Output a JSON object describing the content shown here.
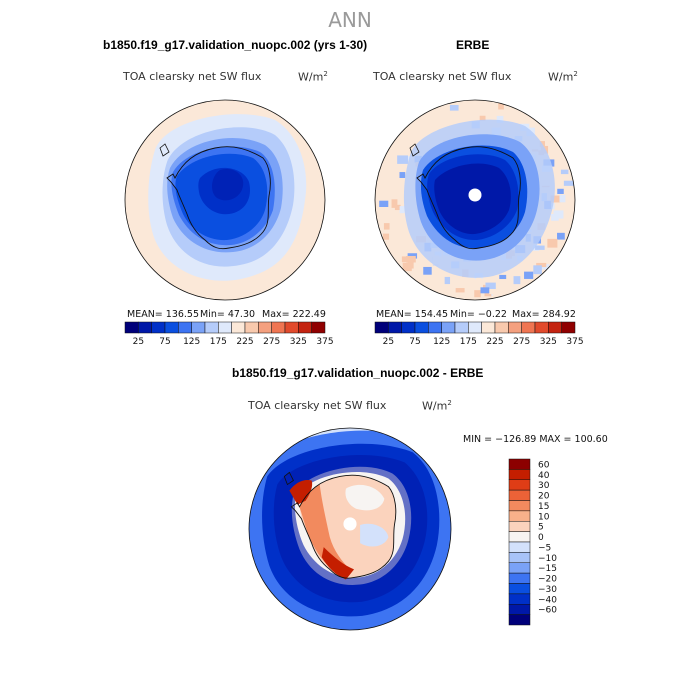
{
  "figure": {
    "title": "ANN",
    "season": "ANN"
  },
  "colors": {
    "scale_main": [
      "#00007a",
      "#0018a8",
      "#0030c8",
      "#0a4fe0",
      "#3d74f2",
      "#7aa2f7",
      "#b5ccfa",
      "#dfe9fb",
      "#fbe8d8",
      "#f8c9ad",
      "#f4a07f",
      "#ef7552",
      "#e14a2c",
      "#c42310",
      "#900000"
    ],
    "scale_diff": [
      "#00007a",
      "#0018a8",
      "#0030c8",
      "#0a4fe0",
      "#3d74f2",
      "#7aa2f7",
      "#a8c3f8",
      "#d3e1fb",
      "#f7f4f2",
      "#fbd3bd",
      "#f8b08a",
      "#f28a5e",
      "#ec6237",
      "#df3d16",
      "#c41e00",
      "#8c0000"
    ]
  },
  "chart_data": [
    {
      "type": "heatmap",
      "projection": "south-polar-stereographic",
      "title": "b1850.f19_g17.validation_nuopc.002 (yrs 1-30)",
      "variable": "TOA clearsky net SW flux",
      "units": "W/m",
      "units_exp": "2",
      "mean_label": "MEAN= 136.55",
      "min_label": "Min=   47.30",
      "max_label": "Max= 222.49",
      "mean": 136.55,
      "min": 47.3,
      "max": 222.49,
      "colorbar_ticks": [
        "25",
        "75",
        "125",
        "175",
        "225",
        "275",
        "325",
        "375"
      ]
    },
    {
      "type": "heatmap",
      "projection": "south-polar-stereographic",
      "title": "ERBE",
      "variable": "TOA clearsky net SW flux",
      "units": "W/m",
      "units_exp": "2",
      "mean_label": "MEAN= 154.45",
      "min_label": "Min=  −0.22",
      "max_label": "Max= 284.92",
      "mean": 154.45,
      "min": -0.22,
      "max": 284.92,
      "colorbar_ticks": [
        "25",
        "75",
        "125",
        "175",
        "225",
        "275",
        "325",
        "375"
      ]
    },
    {
      "type": "heatmap",
      "projection": "south-polar-stereographic",
      "title": "b1850.f19_g17.validation_nuopc.002 - ERBE",
      "variable": "TOA clearsky net SW flux",
      "units": "W/m",
      "units_exp": "2",
      "minmax_label": "MIN = −126.89  MAX = 100.60",
      "min": -126.89,
      "max": 100.6,
      "colorbar_ticks": [
        "60",
        "40",
        "30",
        "20",
        "15",
        "10",
        "5",
        "0",
        "−5",
        "−10",
        "−15",
        "−20",
        "−30",
        "−40",
        "−60"
      ]
    }
  ]
}
